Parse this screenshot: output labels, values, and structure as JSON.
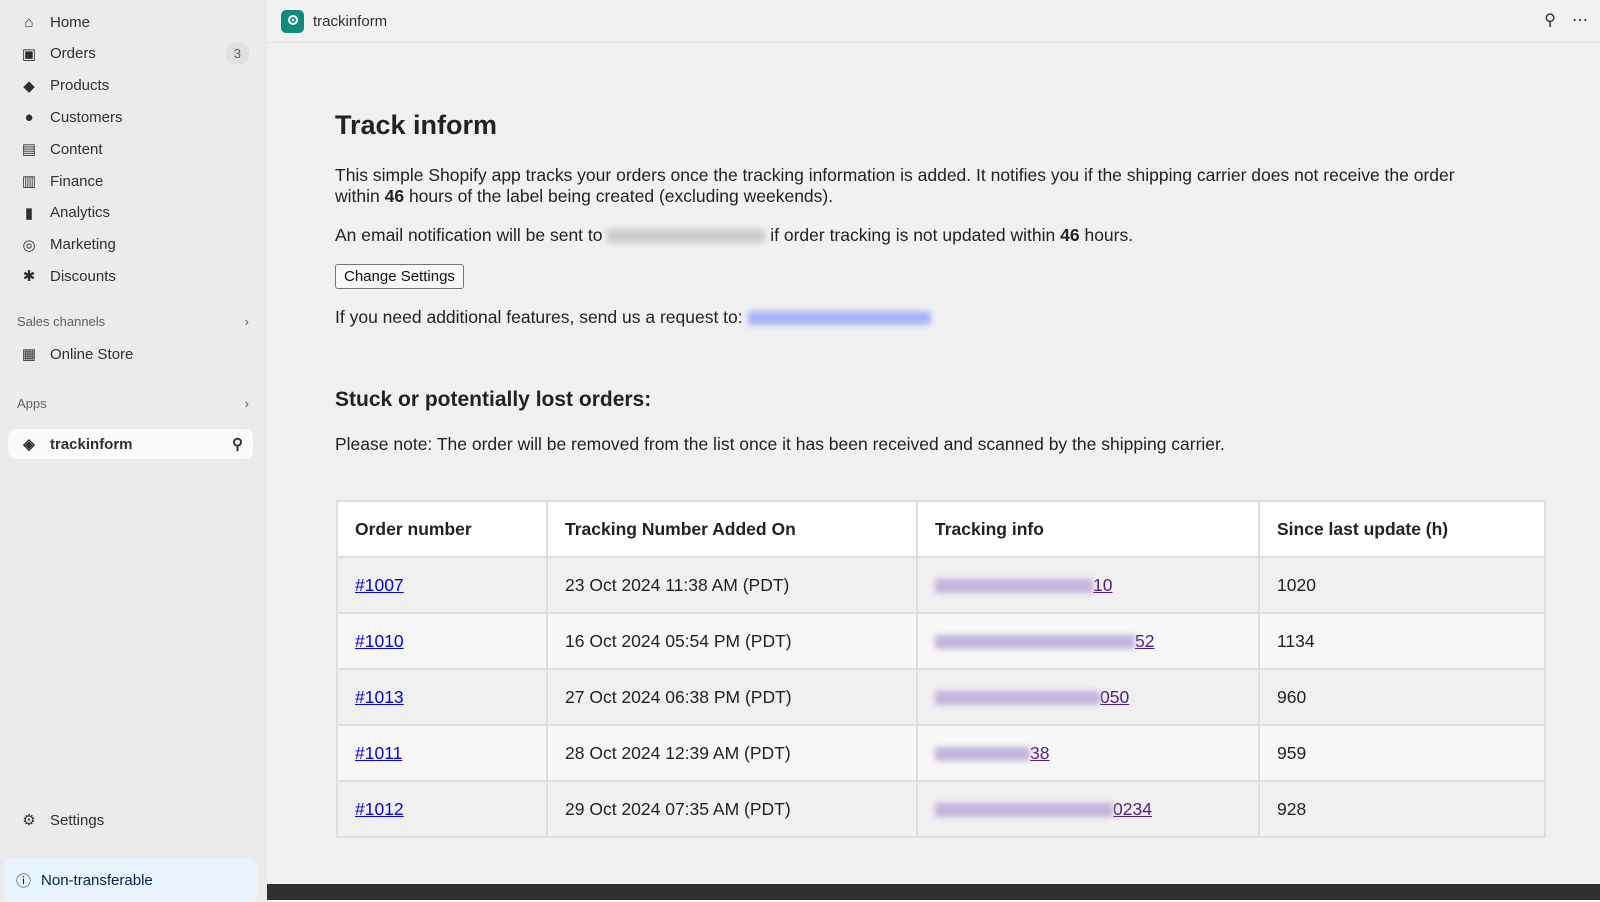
{
  "sidebar": {
    "items": [
      {
        "label": "Home",
        "icon": "home-icon"
      },
      {
        "label": "Orders",
        "icon": "inbox-icon",
        "badge": "3"
      },
      {
        "label": "Products",
        "icon": "tag-icon"
      },
      {
        "label": "Customers",
        "icon": "person-icon"
      },
      {
        "label": "Content",
        "icon": "image-icon"
      },
      {
        "label": "Finance",
        "icon": "bank-icon"
      },
      {
        "label": "Analytics",
        "icon": "bar-chart-icon"
      },
      {
        "label": "Marketing",
        "icon": "target-icon"
      },
      {
        "label": "Discounts",
        "icon": "discount-icon"
      }
    ],
    "sales_channels": "Sales channels",
    "online_store": "Online Store",
    "apps": "Apps",
    "app_item": "trackinform",
    "settings": "Settings",
    "non_transferable": "Non-transferable"
  },
  "topbar": {
    "title": "trackinform"
  },
  "main": {
    "title": "Track inform",
    "intro_1": "This simple Shopify app tracks your orders once the tracking information is added. It notifies you if the shipping carrier does not receive the order",
    "intro_2a": "within ",
    "hours": "46",
    "intro_2b": " hours of the label being created (excluding weekends).",
    "email_a": "An email notification will be sent to ",
    "email_b": " if order tracking is not updated within ",
    "email_c": " hours.",
    "change_settings": "Change Settings",
    "request": "If you need additional features, send us a request to: ",
    "stuck_title": "Stuck or potentially lost orders:",
    "note": "Please note: The order will be removed from the list once it has been received and scanned by the shipping carrier.",
    "table": {
      "headers": [
        "Order number",
        "Tracking Number Added On",
        "Tracking info",
        "Since last update (h)"
      ],
      "rows": [
        {
          "order": "#1007",
          "added": "23 Oct 2024 11:38 AM (PDT)",
          "tracking_suffix": "10",
          "since": "1020"
        },
        {
          "order": "#1010",
          "added": "16 Oct 2024 05:54 PM (PDT)",
          "tracking_suffix": "52",
          "since": "1134"
        },
        {
          "order": "#1013",
          "added": "27 Oct 2024 06:38 PM (PDT)",
          "tracking_suffix": "050",
          "since": "960"
        },
        {
          "order": "#1011",
          "added": "28 Oct 2024 12:39 AM (PDT)",
          "tracking_suffix": "38",
          "since": "959"
        },
        {
          "order": "#1012",
          "added": "29 Oct 2024 07:35 AM (PDT)",
          "tracking_suffix": "0234",
          "since": "928"
        }
      ]
    }
  },
  "colors": {
    "link": "#0000ee",
    "visited": "#551a8b",
    "app_icon": "#118a7e"
  }
}
